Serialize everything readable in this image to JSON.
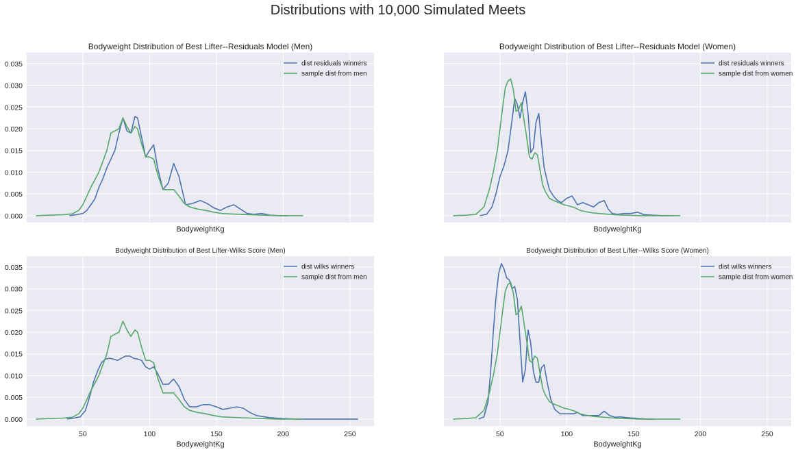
{
  "figure_title": "Distributions with 10,000 Simulated Meets",
  "colors": {
    "blue": "#4c72b0",
    "green": "#55a868",
    "panel_bg": "#eaeaf2",
    "grid": "#ffffff"
  },
  "chart_data": [
    {
      "type": "line",
      "title": "Bodyweight Distribution of Best Lifter--Residuals Model (Men)",
      "xlabel": "BodyweightKg",
      "ylabel": "",
      "xlim": [
        8,
        268
      ],
      "ylim": [
        -0.0016,
        0.0375
      ],
      "xticks": [
        50,
        100,
        150,
        200,
        250
      ],
      "yticks": [
        "0.000",
        "0.005",
        "0.010",
        "0.015",
        "0.020",
        "0.025",
        "0.030",
        "0.035"
      ],
      "show_xticklabels": false,
      "show_yticklabels": true,
      "grid": true,
      "legend": "top-right",
      "series": [
        {
          "name": "dist residuals winners",
          "color": "#4c72b0",
          "x": [
            40,
            45,
            50,
            53,
            56,
            59,
            62,
            65,
            68,
            71,
            74,
            77,
            80,
            83,
            86,
            89,
            91,
            94,
            97,
            100,
            103,
            106,
            110,
            114,
            118,
            122,
            127,
            132,
            138,
            143,
            148,
            153,
            158,
            163,
            168,
            173,
            178,
            184,
            190,
            197,
            204
          ],
          "y": [
            0.0,
            0.0002,
            0.0005,
            0.0012,
            0.0025,
            0.0038,
            0.0065,
            0.0085,
            0.011,
            0.013,
            0.015,
            0.019,
            0.0225,
            0.0195,
            0.019,
            0.0228,
            0.0225,
            0.018,
            0.0135,
            0.015,
            0.0163,
            0.011,
            0.006,
            0.0075,
            0.012,
            0.009,
            0.0025,
            0.0028,
            0.0035,
            0.0028,
            0.0018,
            0.0012,
            0.002,
            0.0025,
            0.0015,
            0.0005,
            0.0003,
            0.0005,
            0.0001,
            0.0,
            0.0
          ]
        },
        {
          "name": "sample dist from men",
          "color": "#55a868",
          "x": [
            15,
            25,
            35,
            42,
            47,
            50,
            53,
            56,
            59,
            62,
            65,
            68,
            71,
            74,
            77,
            80,
            83,
            86,
            89,
            91,
            94,
            97,
            100,
            103,
            106,
            110,
            114,
            118,
            122,
            126,
            130,
            136,
            142,
            148,
            154,
            160,
            168,
            176,
            186,
            196,
            205,
            215
          ],
          "y": [
            0.0,
            0.0001,
            0.0002,
            0.0004,
            0.0012,
            0.0025,
            0.0045,
            0.0065,
            0.0082,
            0.01,
            0.0125,
            0.015,
            0.019,
            0.0195,
            0.02,
            0.0225,
            0.0205,
            0.019,
            0.0205,
            0.02,
            0.0165,
            0.0135,
            0.0135,
            0.013,
            0.0095,
            0.006,
            0.006,
            0.006,
            0.0045,
            0.0028,
            0.002,
            0.0015,
            0.0012,
            0.0008,
            0.0005,
            0.0004,
            0.0003,
            0.0002,
            0.0001,
            0.0,
            0.0,
            0.0
          ]
        }
      ]
    },
    {
      "type": "line",
      "title": "Bodyweight Distribution of Best Lifter--Residuals Model (Women)",
      "xlabel": "BodyweightKg",
      "ylabel": "",
      "xlim": [
        8,
        268
      ],
      "ylim": [
        -0.0016,
        0.0375
      ],
      "xticks": [
        50,
        100,
        150,
        200,
        250
      ],
      "yticks": [
        "0.000",
        "0.005",
        "0.010",
        "0.015",
        "0.020",
        "0.025",
        "0.030",
        "0.035"
      ],
      "show_xticklabels": false,
      "show_yticklabels": false,
      "grid": true,
      "legend": "top-right",
      "series": [
        {
          "name": "dist residuals winners",
          "color": "#4c72b0",
          "x": [
            35,
            40,
            44,
            47,
            50,
            53,
            56,
            59,
            61,
            63,
            65,
            67,
            69,
            71,
            73,
            75,
            77,
            79,
            81,
            83,
            85,
            87,
            90,
            93,
            96,
            100,
            104,
            108,
            112,
            116,
            120,
            124,
            128,
            131,
            134,
            138,
            143,
            148,
            153,
            158,
            164,
            172,
            180
          ],
          "y": [
            0.0,
            0.0003,
            0.002,
            0.005,
            0.009,
            0.0115,
            0.015,
            0.022,
            0.027,
            0.0255,
            0.0225,
            0.026,
            0.0285,
            0.0235,
            0.0145,
            0.0155,
            0.0215,
            0.0235,
            0.017,
            0.011,
            0.0085,
            0.006,
            0.0045,
            0.0035,
            0.003,
            0.004,
            0.0045,
            0.0025,
            0.003,
            0.0025,
            0.002,
            0.003,
            0.0035,
            0.0015,
            0.0005,
            0.0003,
            0.0005,
            0.0005,
            0.0008,
            0.0002,
            0.0001,
            0.0,
            0.0
          ]
        },
        {
          "name": "sample dist from women",
          "color": "#55a868",
          "x": [
            15,
            25,
            32,
            38,
            42,
            45,
            48,
            50,
            52,
            54,
            56,
            58,
            60,
            62,
            64,
            66,
            68,
            70,
            72,
            74,
            76,
            78,
            80,
            82,
            84,
            87,
            90,
            94,
            98,
            102,
            106,
            110,
            114,
            120,
            128,
            136,
            145,
            155,
            165,
            175,
            185
          ],
          "y": [
            0.0,
            0.0001,
            0.0003,
            0.002,
            0.006,
            0.01,
            0.015,
            0.02,
            0.025,
            0.0295,
            0.031,
            0.0315,
            0.029,
            0.024,
            0.0245,
            0.026,
            0.022,
            0.018,
            0.0135,
            0.013,
            0.0145,
            0.014,
            0.0105,
            0.007,
            0.0055,
            0.004,
            0.0035,
            0.003,
            0.0025,
            0.0022,
            0.0018,
            0.0012,
            0.0009,
            0.0006,
            0.0004,
            0.0002,
            0.0001,
            0.0,
            0.0,
            0.0,
            0.0
          ]
        }
      ]
    },
    {
      "type": "line",
      "title": "Bodyweight Distribution of Best Lifter-Wilks Score (Men)",
      "xlabel": "BodyweightKg",
      "ylabel": "",
      "xlim": [
        8,
        268
      ],
      "ylim": [
        -0.0016,
        0.0375
      ],
      "xticks": [
        50,
        100,
        150,
        200,
        250
      ],
      "yticks": [
        "0.000",
        "0.005",
        "0.010",
        "0.015",
        "0.020",
        "0.025",
        "0.030",
        "0.035"
      ],
      "show_xticklabels": true,
      "show_yticklabels": true,
      "grid": true,
      "legend": "top-right",
      "series": [
        {
          "name": "dist wilks winners",
          "color": "#4c72b0",
          "x": [
            38,
            43,
            48,
            52,
            55,
            58,
            61,
            64,
            67,
            70,
            73,
            76,
            79,
            82,
            85,
            88,
            91,
            94,
            97,
            100,
            103,
            106,
            110,
            114,
            118,
            122,
            126,
            130,
            135,
            140,
            145,
            150,
            155,
            160,
            165,
            170,
            175,
            180,
            190,
            200,
            210,
            220,
            230,
            240,
            250,
            256
          ],
          "y": [
            0.0,
            0.0002,
            0.0005,
            0.002,
            0.005,
            0.0085,
            0.011,
            0.013,
            0.0138,
            0.014,
            0.0138,
            0.0135,
            0.014,
            0.0145,
            0.0145,
            0.014,
            0.0138,
            0.0135,
            0.012,
            0.0115,
            0.012,
            0.0105,
            0.008,
            0.008,
            0.0092,
            0.0075,
            0.0045,
            0.0028,
            0.0028,
            0.0033,
            0.0033,
            0.0028,
            0.0022,
            0.0025,
            0.0028,
            0.0025,
            0.0015,
            0.0008,
            0.0003,
            0.0001,
            0.0,
            0.0,
            0.0,
            0.0,
            0.0,
            0.0
          ]
        },
        {
          "name": "sample dist from men",
          "color": "#55a868",
          "x": [
            15,
            25,
            35,
            42,
            47,
            50,
            53,
            56,
            59,
            62,
            65,
            68,
            71,
            74,
            77,
            80,
            83,
            86,
            89,
            91,
            94,
            97,
            100,
            103,
            106,
            110,
            114,
            118,
            122,
            126,
            130,
            136,
            142,
            148,
            154,
            160,
            168,
            176,
            186,
            196,
            205,
            215
          ],
          "y": [
            0.0,
            0.0001,
            0.0002,
            0.0004,
            0.0012,
            0.0025,
            0.0045,
            0.0065,
            0.0082,
            0.01,
            0.0125,
            0.015,
            0.019,
            0.0195,
            0.02,
            0.0225,
            0.0205,
            0.019,
            0.0205,
            0.02,
            0.0165,
            0.0135,
            0.0135,
            0.013,
            0.0095,
            0.006,
            0.006,
            0.006,
            0.0045,
            0.0028,
            0.002,
            0.0015,
            0.0012,
            0.0008,
            0.0005,
            0.0004,
            0.0003,
            0.0002,
            0.0001,
            0.0,
            0.0,
            0.0
          ]
        }
      ]
    },
    {
      "type": "line",
      "title": "Bodyweight Distribution of Best Lifter--Wilks Score (Women)",
      "xlabel": "BodyweightKg",
      "ylabel": "",
      "xlim": [
        8,
        268
      ],
      "ylim": [
        -0.0016,
        0.0375
      ],
      "xticks": [
        50,
        100,
        150,
        200,
        250
      ],
      "yticks": [
        "0.000",
        "0.005",
        "0.010",
        "0.015",
        "0.020",
        "0.025",
        "0.030",
        "0.035"
      ],
      "show_xticklabels": true,
      "show_yticklabels": false,
      "grid": true,
      "legend": "top-right",
      "series": [
        {
          "name": "dist wilks winners",
          "color": "#4c72b0",
          "x": [
            34,
            38,
            41,
            43,
            45,
            47,
            49,
            51,
            53,
            55,
            57,
            59,
            61,
            63,
            65,
            67,
            69,
            71,
            73,
            75,
            77,
            79,
            81,
            83,
            85,
            88,
            91,
            95,
            100,
            105,
            108,
            112,
            118,
            124,
            128,
            132,
            136,
            140,
            145,
            150,
            155,
            160,
            165
          ],
          "y": [
            0.0,
            0.0005,
            0.004,
            0.011,
            0.02,
            0.028,
            0.0335,
            0.0358,
            0.0345,
            0.0325,
            0.032,
            0.03,
            0.0305,
            0.0275,
            0.018,
            0.0085,
            0.0115,
            0.0205,
            0.0175,
            0.011,
            0.0085,
            0.0085,
            0.0118,
            0.0125,
            0.009,
            0.0045,
            0.0022,
            0.0012,
            0.0012,
            0.0012,
            0.0015,
            0.0008,
            0.0008,
            0.0008,
            0.0018,
            0.0008,
            0.0004,
            0.0005,
            0.0003,
            0.0002,
            0.0001,
            0.0,
            0.0
          ]
        },
        {
          "name": "sample dist from women",
          "color": "#55a868",
          "x": [
            15,
            25,
            32,
            38,
            42,
            45,
            48,
            50,
            52,
            54,
            56,
            58,
            60,
            62,
            64,
            66,
            68,
            70,
            72,
            74,
            76,
            78,
            80,
            82,
            84,
            87,
            90,
            94,
            98,
            102,
            106,
            110,
            114,
            120,
            128,
            136,
            145,
            155,
            165,
            175,
            185
          ],
          "y": [
            0.0,
            0.0001,
            0.0003,
            0.002,
            0.006,
            0.01,
            0.015,
            0.02,
            0.025,
            0.0295,
            0.031,
            0.0315,
            0.029,
            0.024,
            0.0245,
            0.026,
            0.022,
            0.018,
            0.0135,
            0.013,
            0.0145,
            0.014,
            0.0105,
            0.007,
            0.0055,
            0.004,
            0.0035,
            0.003,
            0.0025,
            0.0022,
            0.0018,
            0.0012,
            0.0009,
            0.0006,
            0.0004,
            0.0002,
            0.0001,
            0.0,
            0.0,
            0.0,
            0.0
          ]
        }
      ]
    }
  ]
}
